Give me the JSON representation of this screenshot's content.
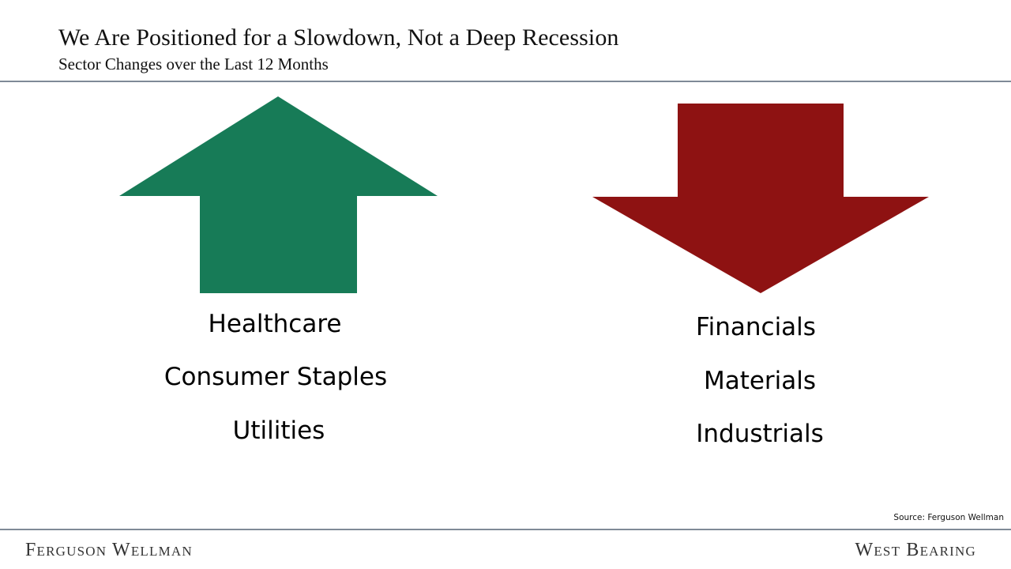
{
  "header": {
    "title": "We Are Positioned for a Slowdown, Not a Deep Recession",
    "subtitle": "Sector Changes over the Last 12 Months"
  },
  "increased": {
    "direction": "up",
    "color": "#177b57",
    "sectors": [
      "Healthcare",
      "Consumer Staples",
      "Utilities"
    ]
  },
  "decreased": {
    "direction": "down",
    "color": "#8e1212",
    "sectors": [
      "Financials",
      "Materials",
      "Industrials"
    ]
  },
  "footer": {
    "source": "Source: Ferguson Wellman",
    "brand_left": "Ferguson Wellman",
    "brand_right": "West Bearing"
  }
}
